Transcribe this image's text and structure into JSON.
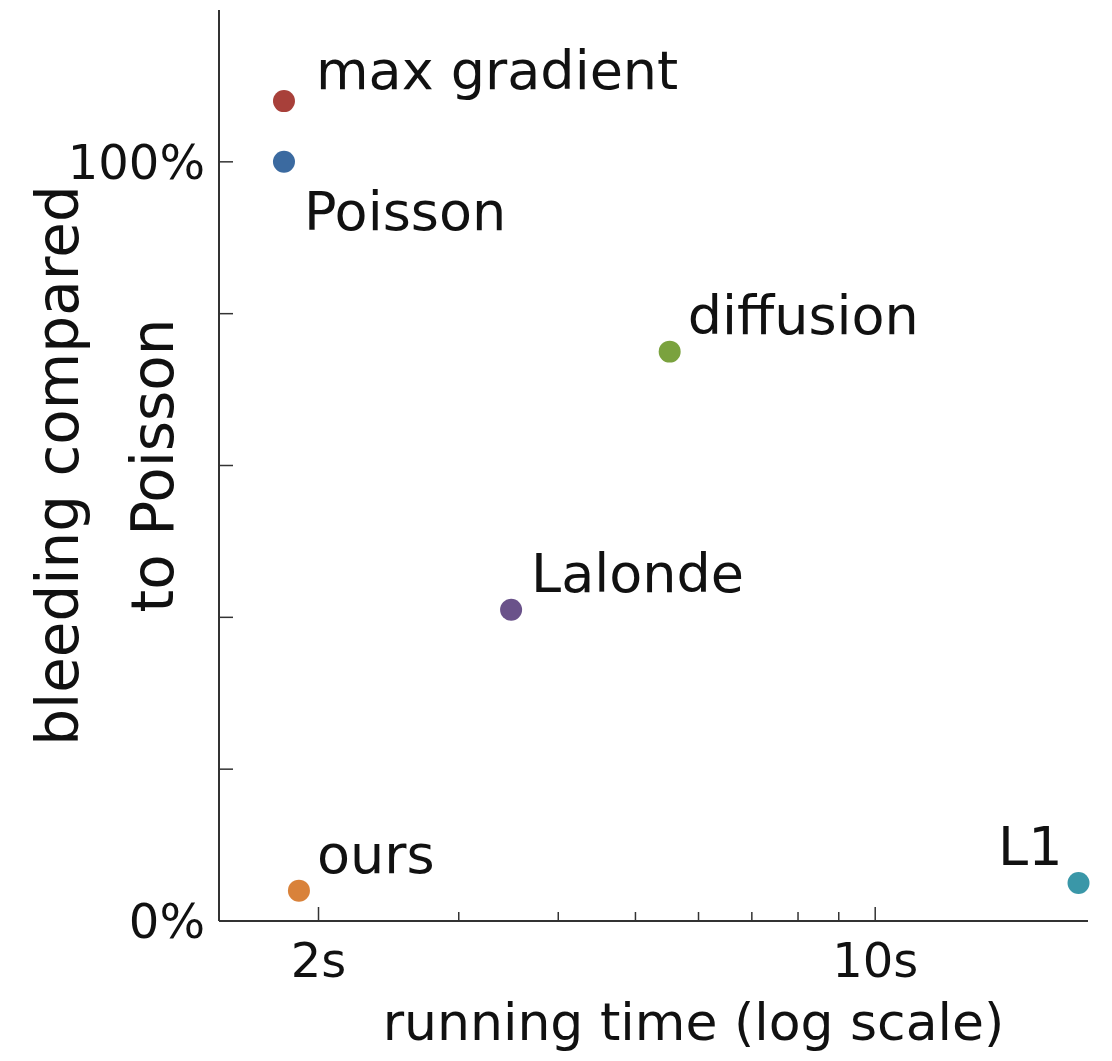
{
  "chart_data": {
    "type": "scatter",
    "xlabel": "running time (log scale)",
    "ylabel": "bleeding compared\nto Poisson",
    "log": "x",
    "xlim": [
      1.5,
      18.5
    ],
    "ylim": [
      0,
      120
    ],
    "xticks": [
      {
        "value": 2,
        "label": "2s"
      },
      {
        "value": 3,
        "label": null
      },
      {
        "value": 4,
        "label": null
      },
      {
        "value": 5,
        "label": null
      },
      {
        "value": 6,
        "label": null
      },
      {
        "value": 7,
        "label": null
      },
      {
        "value": 8,
        "label": null
      },
      {
        "value": 9,
        "label": null
      },
      {
        "value": 10,
        "label": "10s"
      }
    ],
    "yticks": [
      {
        "value": 0,
        "label": "0%"
      },
      {
        "value": 20,
        "label": null
      },
      {
        "value": 40,
        "label": null
      },
      {
        "value": 60,
        "label": null
      },
      {
        "value": 80,
        "label": null
      },
      {
        "value": 100,
        "label": "100%"
      }
    ],
    "grid": false,
    "legend": false,
    "marker": "circle",
    "series": [
      {
        "name": "max gradient",
        "color": "#a8403a",
        "x": [
          1.81
        ],
        "values": [
          108
        ]
      },
      {
        "name": "Poisson",
        "color": "#3b6aa0",
        "x": [
          1.81
        ],
        "values": [
          100
        ]
      },
      {
        "name": "diffusion",
        "color": "#7aa23e",
        "x": [
          5.52
        ],
        "values": [
          75
        ]
      },
      {
        "name": "Lalonde",
        "color": "#6a528a",
        "x": [
          3.49
        ],
        "values": [
          41
        ]
      },
      {
        "name": "ours",
        "color": "#d9823a",
        "x": [
          1.89
        ],
        "values": [
          4
        ]
      },
      {
        "name": "L1",
        "color": "#3a97a8",
        "x": [
          18
        ],
        "values": [
          5
        ]
      }
    ]
  }
}
